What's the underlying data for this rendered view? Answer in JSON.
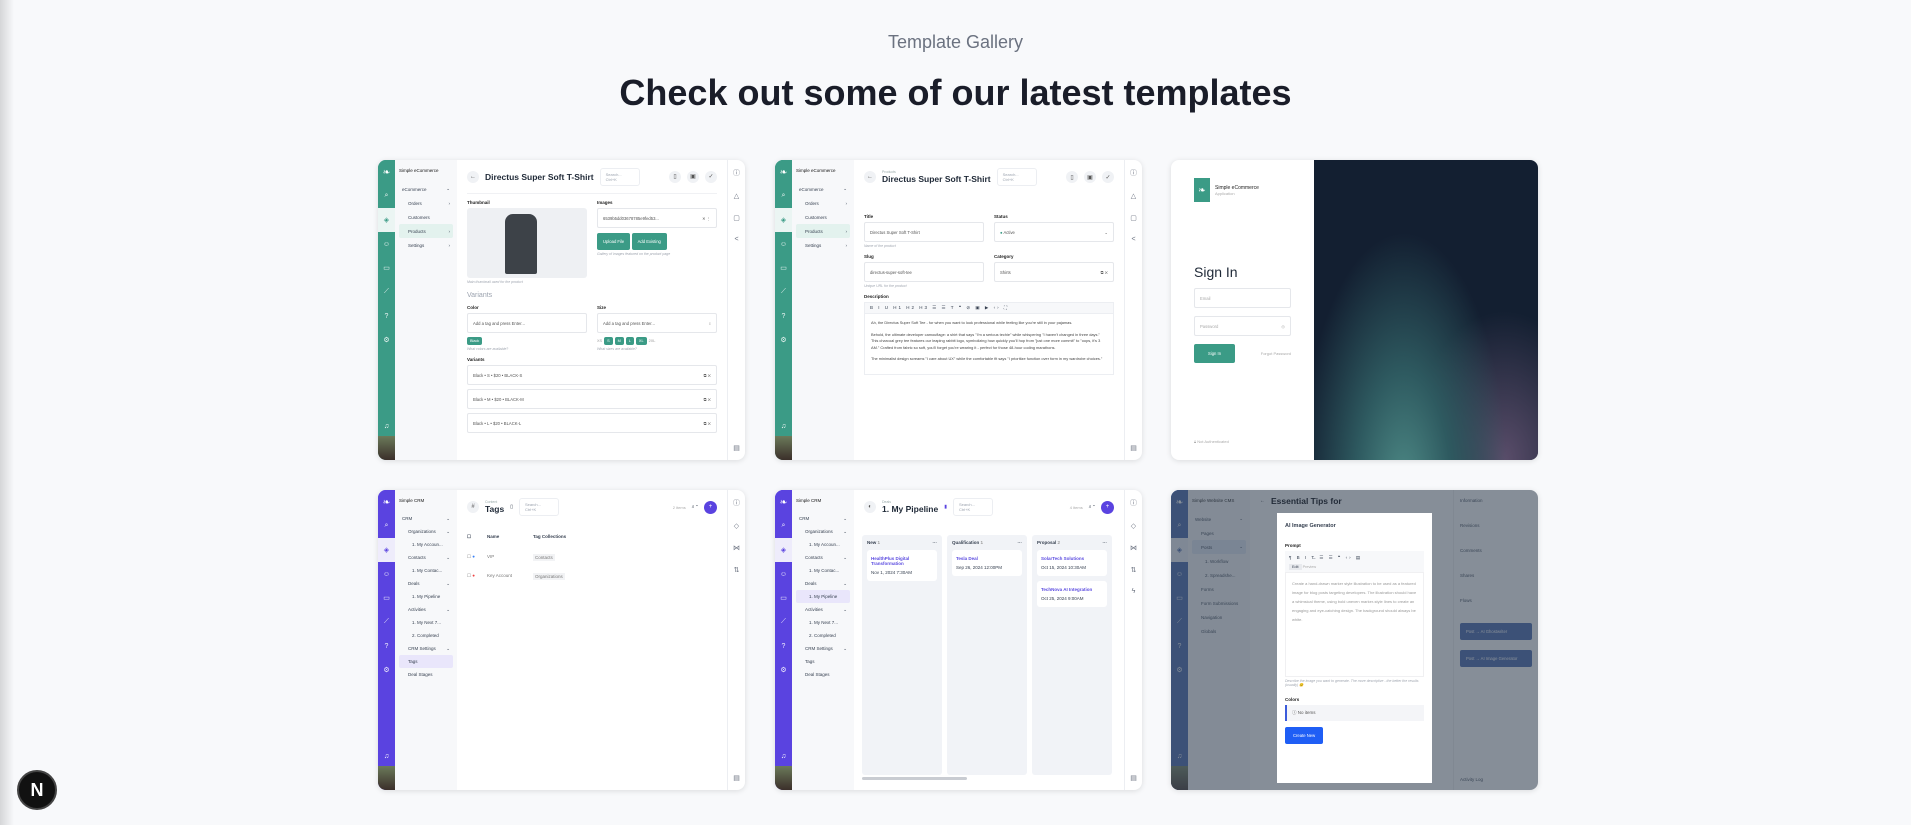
{
  "page": {
    "eyebrow": "Template Gallery",
    "headline": "Check out some of our latest templates"
  },
  "colors": {
    "ecommerce": "#3b9b86",
    "crm": "#5a43e0",
    "cms": "#3d5fa8",
    "background": "#f8f9fb"
  },
  "cards": [
    {
      "app": "Simple eCommerce",
      "title": "Directus Super Soft T-Shirt",
      "search": "Search...  Ctrl+K",
      "nav": [
        "eCommerce",
        "Orders",
        "Customers",
        "Products",
        "Settings"
      ],
      "thumbnail_label": "Thumbnail",
      "thumbnail_hint": "Main thumbnail used for the product",
      "images_label": "Images",
      "image_file": "6539b5dd03678785e9fed53...",
      "upload": "Upload File",
      "add_existing": "Add Existing",
      "images_hint": "Gallery of images featured on the product page",
      "variants_heading": "Variants",
      "color_label": "Color",
      "size_label": "Size",
      "tag_placeholder": "Add a tag and press Enter...",
      "color_tag": "Black",
      "color_hint": "What colors are available?",
      "sizes": [
        "XS",
        "S",
        "M",
        "L",
        "XL",
        "2XL"
      ],
      "size_hint": "What sizes are available?",
      "variants_label": "Variants",
      "variants": [
        "Black • S • $20 • BLACK-S",
        "Black • M • $20 • BLACK-M",
        "Black • L • $20 • BLACK-L"
      ]
    },
    {
      "app": "Simple eCommerce",
      "breadcrumb": "Products",
      "title": "Directus Super Soft T-Shirt",
      "search": "Search...  Ctrl+K",
      "nav": [
        "eCommerce",
        "Orders",
        "Customers",
        "Products",
        "Settings"
      ],
      "title_label": "Title",
      "title_value": "Directus Super Soft T-Shirt",
      "title_hint": "Name of the product",
      "status_label": "Status",
      "status_value": "Active",
      "slug_label": "Slug",
      "slug_value": "directus-super-soft-tee",
      "slug_hint": "Unique URL for the product",
      "category_label": "Category",
      "category_value": "Shirts",
      "description_label": "Description",
      "paragraphs": [
        "Ah, the Directus Super Soft Tee - for when you want to look professional while feeling like you're still in your pajamas.",
        "Behold, the ultimate developer camouflage: a shirt that says \"I'm a serious techie\" while whispering \"I haven't changed in three days.\" This charcoal grey tee features our leaping rabbit logo, symbolizing how quickly you'll hop from \"just one more commit\" to \"oops, it's 3 AM.\" Crafted from fabric so soft, you'll forget you're wearing it - perfect for those 48-hour coding marathons.",
        "The minimalist design screams \"I care about UX\" while the comfortable fit says \"I prioritize function over form in my wardrobe choices.\""
      ]
    },
    {
      "app": "Simple eCommerce",
      "subtitle": "Application",
      "heading": "Sign In",
      "email": "Email",
      "password": "Password",
      "signin": "Sign In",
      "forgot": "Forgot Password",
      "status": "Not Authenticated"
    },
    {
      "app": "Simple CRM",
      "breadcrumb": "Content",
      "title": "Tags",
      "search": "Search...  Ctrl+K",
      "count": "2 items",
      "nav": [
        "CRM",
        "Organizations",
        "1. My Accoun...",
        "Contacts",
        "1. My Contac...",
        "Deals",
        "1. My Pipeline",
        "Activities",
        "1. My Next 7...",
        "2. Completed",
        "CRM Settings",
        "Tags",
        "Deal Stages"
      ],
      "columns": [
        "Name",
        "Tag Collections"
      ],
      "rows": [
        {
          "name": "VIP",
          "collection": "Contacts",
          "color": "#3b82f6"
        },
        {
          "name": "Key Account",
          "collection": "Organizations",
          "color": "#ef4444"
        }
      ]
    },
    {
      "app": "Simple CRM",
      "breadcrumb": "Deals",
      "title": "1. My Pipeline",
      "search": "Search...  Ctrl+K",
      "count": "4 items",
      "nav": [
        "CRM",
        "Organizations",
        "1. My Accoun...",
        "Contacts",
        "1. My Contac...",
        "Deals",
        "1. My Pipeline",
        "Activities",
        "1. My Next 7...",
        "2. Completed",
        "CRM Settings",
        "Tags",
        "Deal Stages"
      ],
      "columns": [
        {
          "name": "New",
          "count": "1",
          "cards": [
            {
              "t": "HealthPlus Digital Transformation",
              "d": "Nov 1, 2024 7:30AM"
            }
          ]
        },
        {
          "name": "Qualification",
          "count": "1",
          "cards": [
            {
              "t": "Tesla Deal",
              "d": "Sep 26, 2024 12:00PM"
            }
          ]
        },
        {
          "name": "Proposal",
          "count": "2",
          "cards": [
            {
              "t": "SolarTech Solutions",
              "d": "Oct 15, 2024 10:30AM"
            },
            {
              "t": "TechNova AI Integration",
              "d": "Oct 25, 2024 9:00AM"
            }
          ]
        }
      ]
    },
    {
      "app": "Simple Website CMS",
      "title": "Essential Tips for",
      "nav": [
        "Website",
        "Pages",
        "Posts",
        "1. Workflow",
        "2. Spreadshe...",
        "Forms",
        "Form Submissions",
        "Navigation",
        "Globals"
      ],
      "side": [
        "Information",
        "Revisions",
        "Comments",
        "Shares",
        "Flows"
      ],
      "side_buttons": [
        "Post → AI Ghostwriter",
        "Post → AI Image Generator"
      ],
      "activity": "Activity Log",
      "modal": {
        "title": "AI Image Generator",
        "prompt_label": "Prompt",
        "tab_edit": "Edit",
        "tab_preview": "Preview",
        "prompt": "Create a hand-drawn marker style illustration to be used as a featured image for blog posts targeting developers. The illustration should have a whimsical theme, using bold uneven marker-style lines to create an engaging and eye-catching design. The background should always be white.",
        "hint": "Describe the image you want to generate. The more descriptive - the better the results (usually) 😉",
        "colors_label": "Colors",
        "no_items": "No items",
        "create": "Create New"
      }
    }
  ]
}
